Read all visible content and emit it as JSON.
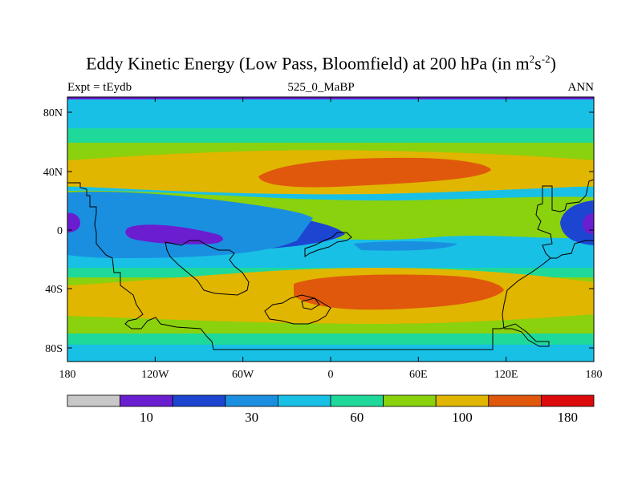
{
  "title": {
    "main": "Eddy Kinetic Energy (Low Pass, Bloomfield) at 200 hPa (in m",
    "sup1": "2",
    "mid": "s",
    "sup2": "-2",
    "end": ")"
  },
  "subtitle": {
    "left": "Expt = tEydb",
    "center": "525_0_MaBP",
    "right": "ANN"
  },
  "axes": {
    "lat_labels": [
      "80N",
      "40N",
      "0",
      "40S",
      "80S"
    ],
    "lon_labels": [
      "180",
      "120W",
      "60W",
      "0",
      "60E",
      "120E",
      "180"
    ]
  },
  "colorbar": {
    "colors": [
      "#c8c8c8",
      "#6a1ed0",
      "#1c46d2",
      "#1a8fe0",
      "#19c0e6",
      "#1ed99a",
      "#8ad10e",
      "#e0b600",
      "#e0580c",
      "#dc0a0a"
    ],
    "labels": [
      "10",
      "30",
      "60",
      "100",
      "180"
    ]
  },
  "palette": {
    "purple": "#6a1ed0",
    "blue": "#1c46d2",
    "mid_blue": "#1a8fe0",
    "cyan": "#19c0e6",
    "green": "#1ed99a",
    "lime": "#8ad10e",
    "yellow": "#e0b600",
    "orange": "#e0580c"
  }
}
